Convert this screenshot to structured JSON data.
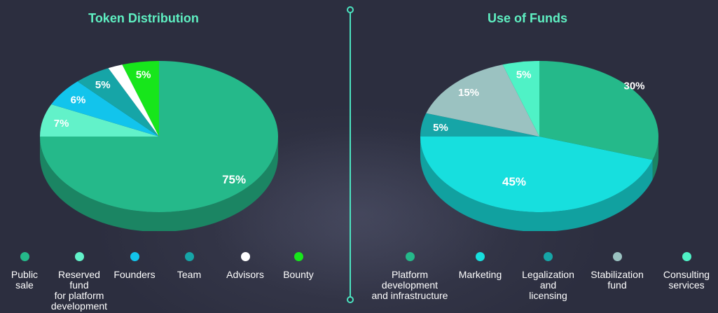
{
  "colors": {
    "background": "#2c2e3f",
    "title": "#5ff0c2",
    "divider": "#4ce3c0",
    "label_text": "#ffffff"
  },
  "chart_data": [
    {
      "type": "pie",
      "title": "Token Distribution",
      "categories": [
        "Public sale",
        "Reserved fund for platform development",
        "Founders",
        "Team",
        "Advisors",
        "Bounty"
      ],
      "values": [
        75,
        7,
        6,
        5,
        2,
        5
      ],
      "labels": [
        "75%",
        "7%",
        "6%",
        "5%",
        "2%",
        "5%"
      ],
      "colors": [
        "#25b98a",
        "#62f2c9",
        "#12c4ec",
        "#16a5a7",
        "#ffffff",
        "#17e61b"
      ],
      "legend_labels": [
        "Public\nsale",
        "Reserved\nfund\nfor platform\ndevelopment",
        "Founders",
        "Team",
        "Advisors",
        "Bounty"
      ],
      "legend_position": "bottom"
    },
    {
      "type": "pie",
      "title": "Use of Funds",
      "categories": [
        "Platform development and infrastructure",
        "Marketing",
        "Legalization and licensing",
        "Stabilization fund",
        "Consulting services"
      ],
      "values": [
        30,
        45,
        5,
        15,
        5
      ],
      "labels": [
        "30%",
        "45%",
        "5%",
        "15%",
        "5%"
      ],
      "colors": [
        "#25b98a",
        "#17dfde",
        "#16a5a7",
        "#9bc2c1",
        "#4ff2c6"
      ],
      "legend_labels": [
        "Platform\ndevelopment\nand infrastructure",
        "Marketing",
        "Legalization\nand\nlicensing",
        "Stabilization\nfund",
        "Consulting\nservices"
      ],
      "legend_position": "bottom"
    }
  ]
}
